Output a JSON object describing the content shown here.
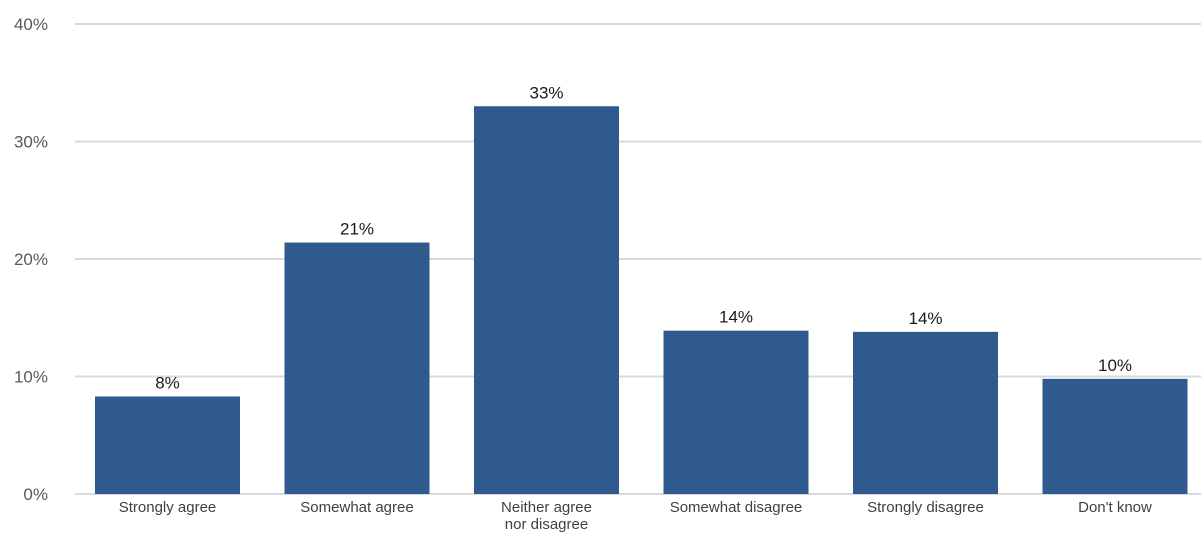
{
  "chart_data": {
    "type": "bar",
    "categories": [
      [
        "Strongly agree"
      ],
      [
        "Somewhat agree"
      ],
      [
        "Neither agree",
        "nor disagree"
      ],
      [
        "Somewhat disagree"
      ],
      [
        "Strongly disagree"
      ],
      [
        "Don't know"
      ]
    ],
    "values": [
      8.3,
      21.4,
      33.0,
      13.9,
      13.8,
      9.8
    ],
    "data_labels": [
      "8%",
      "21%",
      "33%",
      "14%",
      "14%",
      "10%"
    ],
    "title": "",
    "xlabel": "",
    "ylabel": "",
    "ylim": [
      0,
      40
    ],
    "yticks": [
      0,
      10,
      20,
      30,
      40
    ],
    "ytick_labels": [
      "0%",
      "10%",
      "20%",
      "30%",
      "40%"
    ],
    "grid": true,
    "legend": "none",
    "colors": {
      "bar": "#2e5a8e",
      "grid": "#d9d9d9",
      "tick_text": "#595959",
      "label_text": "#1a1a1a"
    }
  }
}
